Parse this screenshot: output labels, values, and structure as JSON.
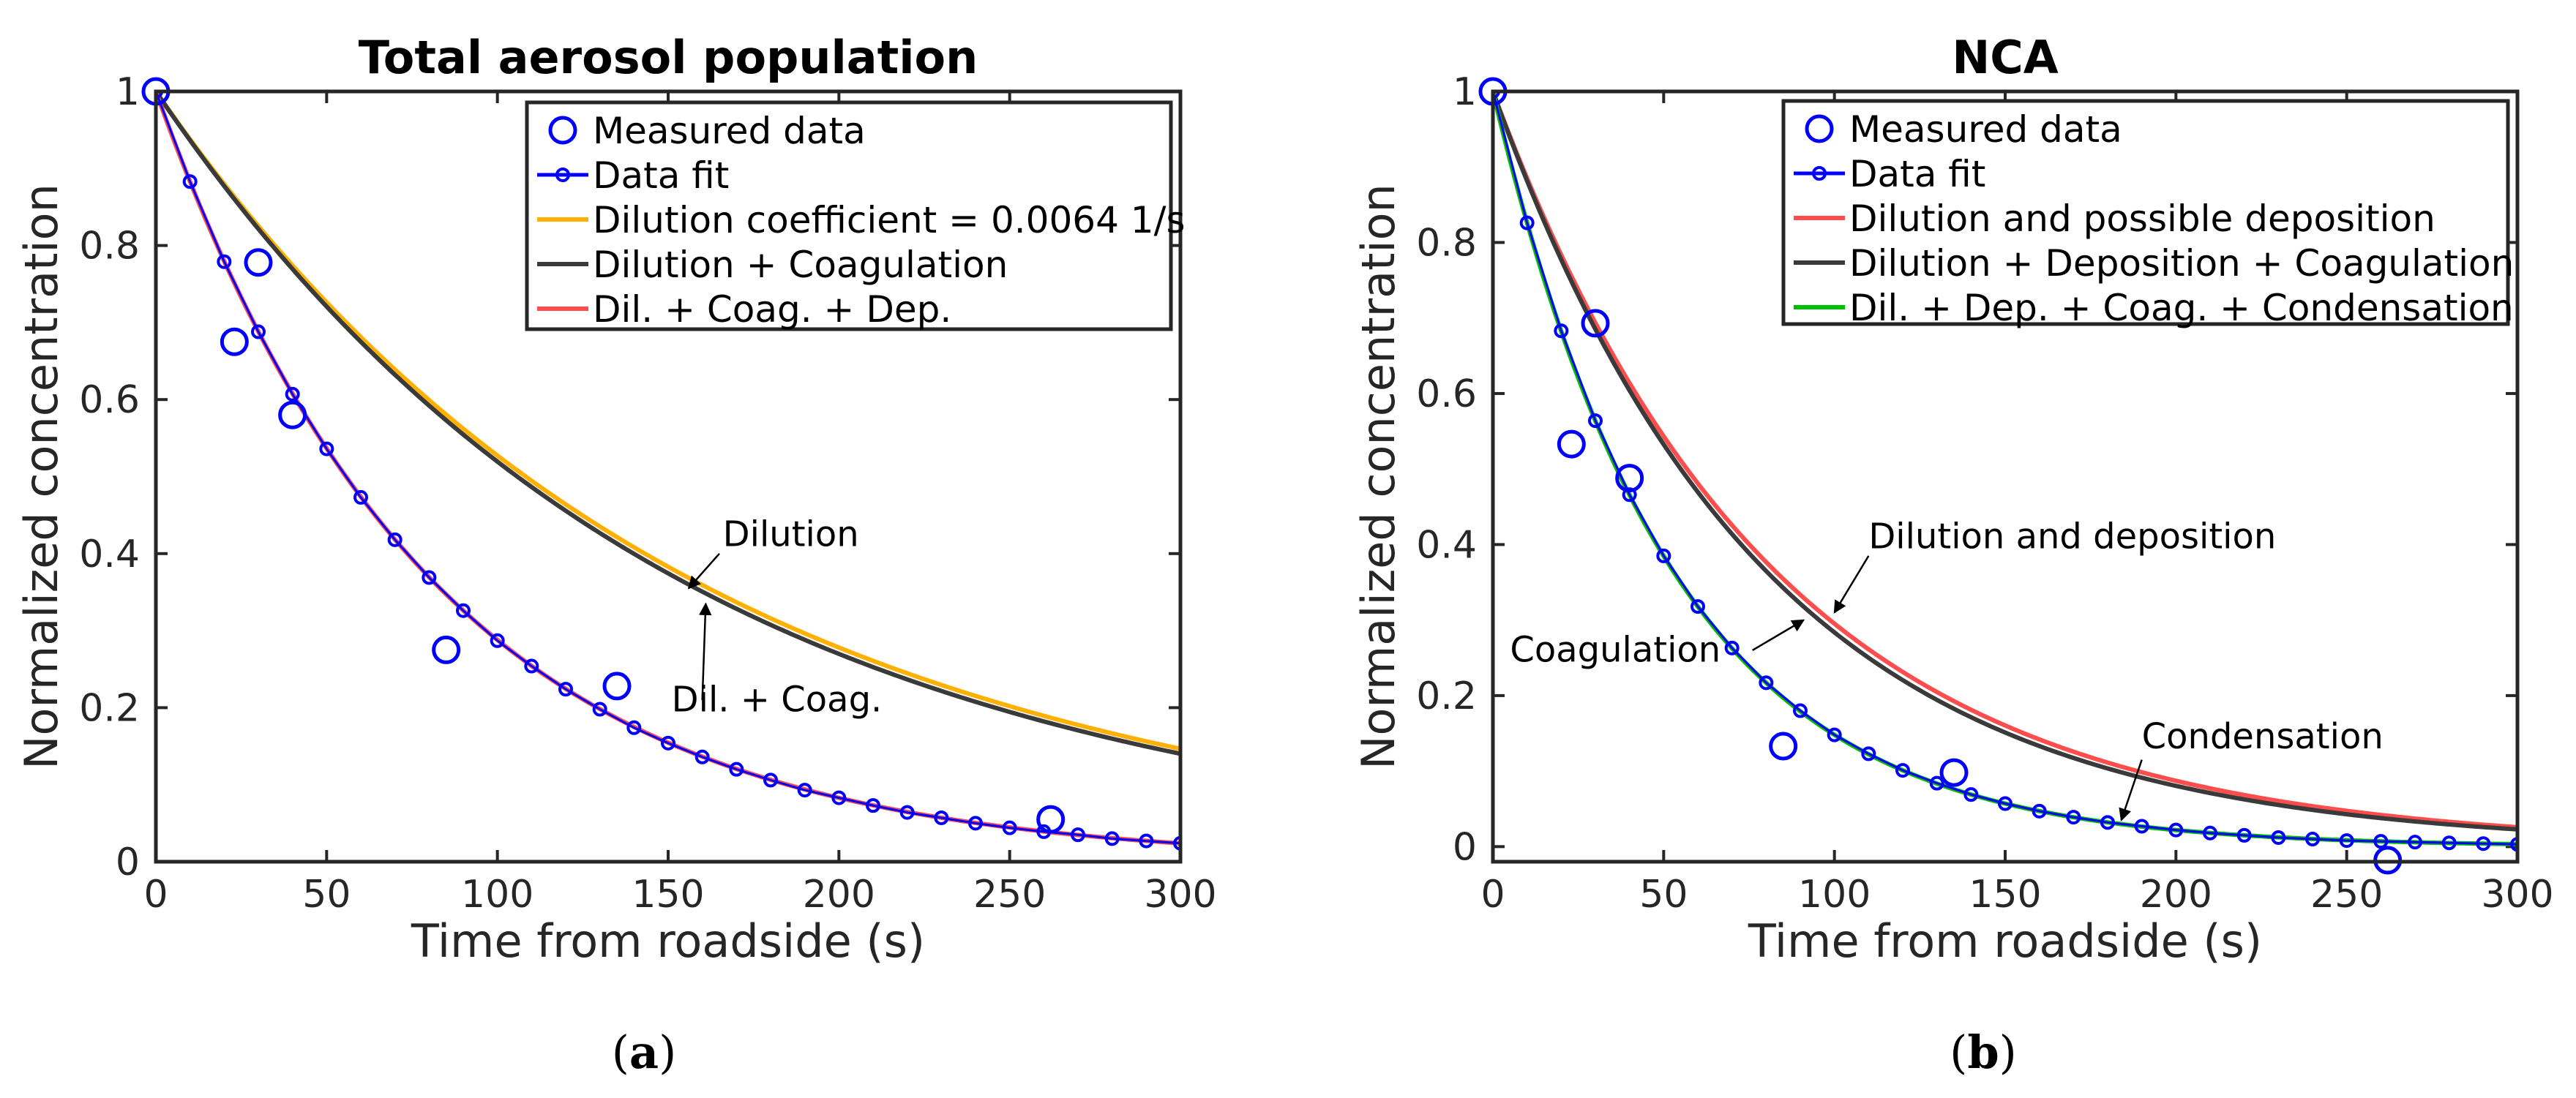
{
  "colors": {
    "measured": "#0000ff",
    "fit": "#0000ff",
    "orange": "#ffb000",
    "dark": "#3a3a3a",
    "red": "#ff4d4d",
    "green": "#00c000"
  },
  "chart_data": [
    {
      "type": "line",
      "panel": "a",
      "caption": "(a)",
      "caption_letter": "a",
      "title": "Total aerosol population",
      "xlabel": "Time from roadside (s)",
      "ylabel": "Normalized concentration",
      "xlim": [
        0,
        300
      ],
      "ylim": [
        0,
        1
      ],
      "xticks": [
        0,
        50,
        100,
        150,
        200,
        250,
        300
      ],
      "yticks": [
        0,
        0.2,
        0.4,
        0.6,
        0.8,
        1
      ],
      "ytick_labels": [
        "0",
        "0.2",
        "0.4",
        "0.6",
        "0.8",
        "1"
      ],
      "measured": {
        "name": "Measured data",
        "x": [
          0,
          23,
          30,
          40,
          85,
          135,
          262
        ],
        "y": [
          1.0,
          0.675,
          0.778,
          0.58,
          0.275,
          0.228,
          0.055
        ]
      },
      "fit": {
        "name": "Data fit",
        "x": [
          0,
          10,
          20,
          30,
          40,
          50,
          60,
          70,
          80,
          90,
          100,
          110,
          120,
          130,
          140,
          150,
          160,
          170,
          180,
          190,
          200,
          210,
          220,
          230,
          240,
          250,
          260,
          270,
          280,
          290,
          300
        ],
        "y": [
          1.0,
          0.883,
          0.779,
          0.688,
          0.607,
          0.536,
          0.473,
          0.418,
          0.369,
          0.326,
          0.287,
          0.254,
          0.224,
          0.198,
          0.174,
          0.154,
          0.136,
          0.12,
          0.106,
          0.093,
          0.083,
          0.073,
          0.064,
          0.057,
          0.05,
          0.044,
          0.039,
          0.035,
          0.03,
          0.027,
          0.024
        ]
      },
      "curves": [
        {
          "name": "Dilution coefficient = 0.0064 1/s",
          "color_key": "orange",
          "model": "exp",
          "k": 0.0064
        },
        {
          "name": "Dilution + Coagulation",
          "color_key": "dark",
          "model": "exp",
          "k": 0.00655
        },
        {
          "name": "Dil. + Coag. + Dep.",
          "color_key": "red",
          "model": "exp",
          "k": 0.01245
        }
      ],
      "legend": [
        "Measured data",
        "Data fit",
        "Dilution coefficient = 0.0064 1/s",
        "Dilution + Coagulation",
        "Dil. + Coag. + Dep."
      ],
      "legend_position": "top-right",
      "annotations": [
        {
          "text": "Dilution",
          "text_x": 166,
          "text_y": 0.41,
          "arrow_from": [
            165,
            0.4
          ],
          "arrow_to": [
            156,
            0.355
          ]
        },
        {
          "text": "Dil. + Coag.",
          "text_x": 151,
          "text_y": 0.195,
          "arrow_from": [
            160,
            0.21
          ],
          "arrow_to": [
            161,
            0.335
          ]
        }
      ]
    },
    {
      "type": "line",
      "panel": "b",
      "caption": "(b)",
      "caption_letter": "b",
      "title": "NCA",
      "xlabel": "Time from roadside (s)",
      "ylabel": "Normalized concentration",
      "xlim": [
        0,
        300
      ],
      "ylim": [
        -0.02,
        1
      ],
      "xticks": [
        0,
        50,
        100,
        150,
        200,
        250,
        300
      ],
      "yticks": [
        0,
        0.2,
        0.4,
        0.6,
        0.8,
        1
      ],
      "ytick_labels": [
        "0",
        "0.2",
        "0.4",
        "0.6",
        "0.8",
        "1"
      ],
      "measured": {
        "name": "Measured data",
        "x": [
          0,
          23,
          30,
          40,
          85,
          135,
          262
        ],
        "y": [
          1.0,
          0.533,
          0.693,
          0.488,
          0.133,
          0.098,
          -0.018
        ]
      },
      "fit": {
        "name": "Data fit",
        "x": [
          0,
          10,
          20,
          30,
          40,
          50,
          60,
          70,
          80,
          90,
          100,
          110,
          120,
          130,
          140,
          150,
          160,
          170,
          180,
          190,
          200,
          210,
          220,
          230,
          240,
          250,
          260,
          270,
          280,
          290,
          300
        ],
        "y": [
          1.0,
          0.826,
          0.683,
          0.564,
          0.466,
          0.385,
          0.318,
          0.263,
          0.217,
          0.18,
          0.148,
          0.123,
          0.101,
          0.084,
          0.069,
          0.057,
          0.047,
          0.039,
          0.032,
          0.027,
          0.022,
          0.018,
          0.015,
          0.012,
          0.01,
          0.008,
          0.007,
          0.006,
          0.005,
          0.004,
          0.003
        ]
      },
      "curves": [
        {
          "name": "Dilution and possible deposition",
          "color_key": "red",
          "model": "exp",
          "k": 0.0122
        },
        {
          "name": "Dilution + Deposition + Coagulation",
          "color_key": "dark",
          "model": "exp",
          "k": 0.0126
        },
        {
          "name": "Dil. + Dep. + Coag. + Condensation",
          "color_key": "green",
          "model": "exp",
          "k": 0.0191
        }
      ],
      "legend": [
        "Measured data",
        "Data fit",
        "Dilution and possible deposition",
        "Dilution + Deposition + Coagulation",
        "Dil. + Dep. + Coag. + Condensation"
      ],
      "legend_position": "top-right",
      "annotations": [
        {
          "text": "Dilution and deposition",
          "text_x": 110,
          "text_y": 0.395,
          "arrow_from": [
            110,
            0.385
          ],
          "arrow_to": [
            100,
            0.31
          ]
        },
        {
          "text": "Coagulation",
          "text_x": 5,
          "text_y": 0.245,
          "arrow_from": [
            76,
            0.26
          ],
          "arrow_to": [
            91,
            0.3
          ]
        },
        {
          "text": "Condensation",
          "text_x": 190,
          "text_y": 0.13,
          "arrow_from": [
            190,
            0.115
          ],
          "arrow_to": [
            184,
            0.035
          ]
        }
      ]
    }
  ]
}
